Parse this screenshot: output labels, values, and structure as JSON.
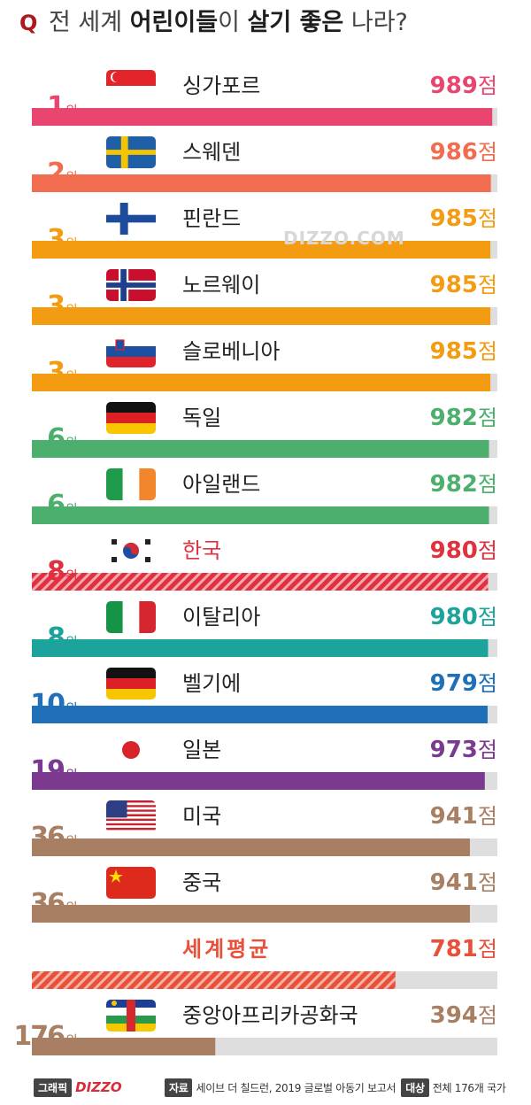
{
  "header": {
    "q": "Q",
    "title_light": "전 세계",
    "title_bold_1": "어린이들",
    "title_light_2": "이",
    "title_bold_2": "살기 좋은",
    "title_light_3": "나라?"
  },
  "watermark": "DIZZO.COM",
  "chart_data": {
    "type": "bar",
    "title": "전 세계 어린이들이 살기 좋은 나라?",
    "rank_suffix": "위",
    "unit": "점",
    "max": 1000,
    "rows": [
      {
        "rank": "1",
        "country": "싱가포르",
        "value": 989,
        "flag": "singapore-flag",
        "color": "#e8466e"
      },
      {
        "rank": "2",
        "country": "스웨덴",
        "value": 986,
        "flag": "sweden-flag",
        "color": "#f26c4f"
      },
      {
        "rank": "3",
        "country": "핀란드",
        "value": 985,
        "flag": "finland-flag",
        "color": "#f39c12"
      },
      {
        "rank": "3",
        "country": "노르웨이",
        "value": 985,
        "flag": "norway-flag",
        "color": "#f39c12"
      },
      {
        "rank": "3",
        "country": "슬로베니아",
        "value": 985,
        "flag": "slovenia-flag",
        "color": "#f39c12"
      },
      {
        "rank": "6",
        "country": "독일",
        "value": 982,
        "flag": "germany-flag",
        "color": "#4caf6e"
      },
      {
        "rank": "6",
        "country": "아일랜드",
        "value": 982,
        "flag": "ireland-flag",
        "color": "#4caf6e"
      },
      {
        "rank": "8",
        "country": "한국",
        "value": 980,
        "flag": "korea-flag",
        "color": "#e03140",
        "highlight": true
      },
      {
        "rank": "8",
        "country": "이탈리아",
        "value": 980,
        "flag": "italy-flag",
        "color": "#1ca39c"
      },
      {
        "rank": "10",
        "country": "벨기에",
        "value": 979,
        "flag": "germany-flag",
        "color": "#1f70b8"
      },
      {
        "rank": "19",
        "country": "일본",
        "value": 973,
        "flag": "japan-flag",
        "color": "#7b3a8f"
      },
      {
        "rank": "36",
        "country": "미국",
        "value": 941,
        "flag": "usa-flag",
        "color": "#a87f62"
      },
      {
        "rank": "36",
        "country": "중국",
        "value": 941,
        "flag": "china-flag",
        "color": "#a87f62"
      },
      {
        "rank": "",
        "country": "세계평균",
        "value": 781,
        "flag": "",
        "color": "#e8503a",
        "average": true
      },
      {
        "rank": "176",
        "country": "중앙아프리카공화국",
        "value": 394,
        "flag": "car-flag",
        "color": "#a87f62"
      }
    ]
  },
  "footer": {
    "credit_label": "그래픽",
    "credit_brand": "DIZZO",
    "source_label": "자료",
    "source_text": "세이브 더 칠드런, 2019 글로벌 아동기 보고서",
    "target_label": "대상",
    "target_text": "전체 176개 국가"
  }
}
